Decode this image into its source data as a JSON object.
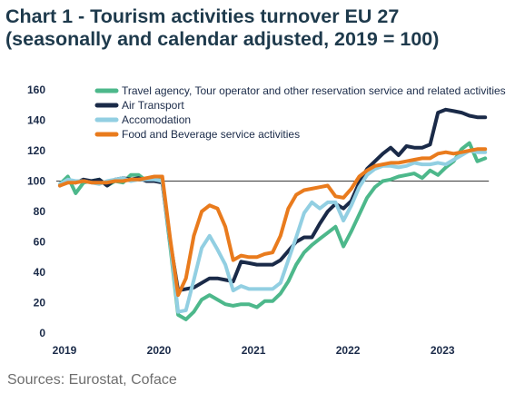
{
  "chart_data": {
    "type": "line",
    "title": "Chart 1 - Tourism activities turnover EU 27",
    "subtitle": "(seasonally and calendar adjusted, 2019 = 100)",
    "source": "Sources: Eurostat, Coface",
    "ylim": [
      0,
      160
    ],
    "y_ticks": [
      0,
      20,
      40,
      60,
      80,
      100,
      120,
      140,
      160
    ],
    "x_ticks": [
      "2019",
      "2020",
      "2021",
      "2022",
      "2023"
    ],
    "x_axis_at": 100,
    "grid": false,
    "legend_position": "top",
    "x": [
      "2019-01",
      "2019-02",
      "2019-03",
      "2019-04",
      "2019-05",
      "2019-06",
      "2019-07",
      "2019-08",
      "2019-09",
      "2019-10",
      "2019-11",
      "2019-12",
      "2020-01",
      "2020-02",
      "2020-03",
      "2020-04",
      "2020-05",
      "2020-06",
      "2020-07",
      "2020-08",
      "2020-09",
      "2020-10",
      "2020-11",
      "2020-12",
      "2021-01",
      "2021-02",
      "2021-03",
      "2021-04",
      "2021-05",
      "2021-06",
      "2021-07",
      "2021-08",
      "2021-09",
      "2021-10",
      "2021-11",
      "2021-12",
      "2022-01",
      "2022-02",
      "2022-03",
      "2022-04",
      "2022-05",
      "2022-06",
      "2022-07",
      "2022-08",
      "2022-09",
      "2022-10",
      "2022-11",
      "2022-12",
      "2023-01",
      "2023-02",
      "2023-03",
      "2023-04",
      "2023-05",
      "2023-06",
      "2023-07"
    ],
    "series": [
      {
        "name": "Travel agency, Tour operator and other reservation service and related activities",
        "color": "#4db88b",
        "values": [
          98,
          103,
          92,
          99,
          100,
          101,
          97,
          100,
          99,
          104,
          104,
          100,
          102,
          100,
          57,
          12,
          9,
          14,
          22,
          25,
          22,
          19,
          18,
          19,
          19,
          17,
          21,
          21,
          26,
          34,
          45,
          53,
          58,
          62,
          66,
          70,
          57,
          67,
          78,
          89,
          96,
          100,
          101,
          103,
          104,
          105,
          102,
          107,
          104,
          109,
          113,
          121,
          125,
          113,
          115
        ]
      },
      {
        "name": "Air Transport",
        "color": "#1a2a48",
        "values": [
          97,
          100,
          99,
          101,
          100,
          101,
          97,
          101,
          102,
          101,
          102,
          100,
          100,
          99,
          60,
          28,
          29,
          30,
          33,
          36,
          36,
          35,
          34,
          47,
          46,
          45,
          45,
          45,
          48,
          54,
          60,
          63,
          63,
          72,
          80,
          85,
          82,
          87,
          99,
          108,
          113,
          118,
          122,
          117,
          123,
          122,
          122,
          124,
          145,
          147,
          146,
          145,
          143,
          142,
          142
        ]
      },
      {
        "name": "Accomodation",
        "color": "#92cfe2",
        "values": [
          98,
          101,
          100,
          100,
          99,
          98,
          100,
          101,
          102,
          100,
          101,
          101,
          101,
          100,
          60,
          14,
          15,
          35,
          56,
          64,
          55,
          45,
          28,
          31,
          29,
          29,
          29,
          29,
          33,
          48,
          63,
          79,
          86,
          82,
          86,
          86,
          74,
          84,
          96,
          104,
          108,
          110,
          110,
          109,
          110,
          112,
          111,
          111,
          112,
          111,
          114,
          117,
          120,
          119,
          119
        ]
      },
      {
        "name": "Food and Beverage service activities",
        "color": "#e97b1d",
        "values": [
          97,
          99,
          99,
          100,
          99,
          99,
          99,
          100,
          100,
          101,
          101,
          102,
          103,
          103,
          62,
          25,
          36,
          64,
          80,
          84,
          82,
          70,
          48,
          51,
          50,
          50,
          52,
          53,
          64,
          82,
          91,
          94,
          95,
          96,
          97,
          90,
          89,
          95,
          103,
          107,
          110,
          111,
          112,
          112,
          113,
          114,
          115,
          115,
          118,
          119,
          118,
          119,
          120,
          121,
          121
        ]
      }
    ]
  }
}
